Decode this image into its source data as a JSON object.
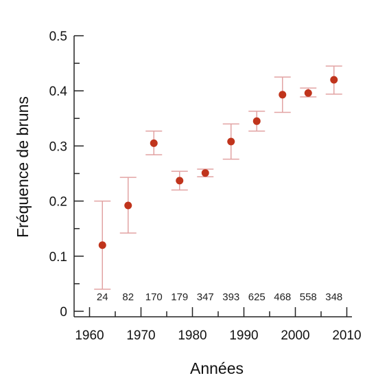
{
  "chart_data": {
    "type": "scatter",
    "title": "",
    "xlabel": "Années",
    "ylabel": "Fréquence de bruns",
    "xlim": [
      1957,
      2011
    ],
    "ylim": [
      -0.01,
      0.5
    ],
    "x_ticks": [
      1960,
      1970,
      1980,
      1990,
      2000,
      2010
    ],
    "x_tick_labels": [
      "1960",
      "1970",
      "1980",
      "1990",
      "2000",
      "2010"
    ],
    "y_ticks": [
      0,
      0.1,
      0.2,
      0.3,
      0.4,
      0.5
    ],
    "y_tick_labels": [
      "0",
      "0.1",
      "0.2",
      "0.3",
      "0.4",
      "0.5"
    ],
    "grid": false,
    "marker_color": "#c0341c",
    "errorbar_color": "#e2a3a3",
    "points": [
      {
        "x": 1962.5,
        "y": 0.12,
        "err_low": 0.04,
        "err_high": 0.2,
        "n": "24"
      },
      {
        "x": 1967.5,
        "y": 0.192,
        "err_low": 0.142,
        "err_high": 0.243,
        "n": "82"
      },
      {
        "x": 1972.5,
        "y": 0.305,
        "err_low": 0.284,
        "err_high": 0.327,
        "n": "170"
      },
      {
        "x": 1977.5,
        "y": 0.237,
        "err_low": 0.22,
        "err_high": 0.254,
        "n": "179"
      },
      {
        "x": 1982.5,
        "y": 0.251,
        "err_low": 0.244,
        "err_high": 0.258,
        "n": "347"
      },
      {
        "x": 1987.5,
        "y": 0.308,
        "err_low": 0.276,
        "err_high": 0.34,
        "n": "393"
      },
      {
        "x": 1992.5,
        "y": 0.345,
        "err_low": 0.327,
        "err_high": 0.363,
        "n": "625"
      },
      {
        "x": 1997.5,
        "y": 0.393,
        "err_low": 0.361,
        "err_high": 0.425,
        "n": "468"
      },
      {
        "x": 2002.5,
        "y": 0.396,
        "err_low": 0.389,
        "err_high": 0.405,
        "n": "558"
      },
      {
        "x": 2007.5,
        "y": 0.42,
        "err_low": 0.394,
        "err_high": 0.445,
        "n": "348"
      }
    ]
  }
}
